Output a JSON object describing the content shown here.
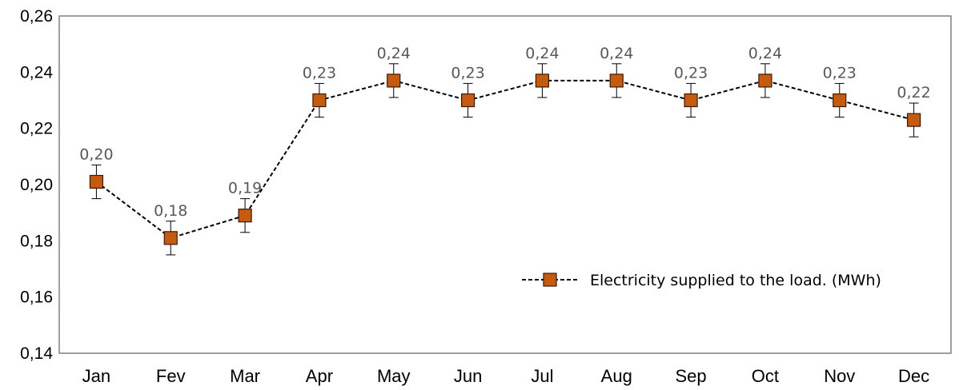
{
  "chart_data": {
    "type": "line",
    "title": "",
    "xlabel": "",
    "ylabel": "",
    "categories": [
      "Jan",
      "Fev",
      "Mar",
      "Apr",
      "May",
      "Jun",
      "Jul",
      "Aug",
      "Sep",
      "Oct",
      "Nov",
      "Dec"
    ],
    "series": [
      {
        "name": "Electricity supplied to the load. (MWh)",
        "values": [
          0.201,
          0.181,
          0.189,
          0.23,
          0.237,
          0.23,
          0.237,
          0.237,
          0.23,
          0.237,
          0.23,
          0.223
        ],
        "data_labels": [
          "0,20",
          "0,18",
          "0,19",
          "0,23",
          "0,24",
          "0,23",
          "0,24",
          "0,24",
          "0,23",
          "0,24",
          "0,23",
          "0,22"
        ],
        "error": 0.006,
        "line_style": "dashed",
        "line_color": "#000000",
        "marker": "square",
        "marker_color": "#C55A11",
        "marker_edge_color": "#3b1a05"
      }
    ],
    "ylim": [
      0.14,
      0.26
    ],
    "y_ticks": [
      "0,14",
      "0,16",
      "0,18",
      "0,20",
      "0,22",
      "0,24",
      "0,26"
    ],
    "y_tick_values": [
      0.14,
      0.16,
      0.18,
      0.2,
      0.22,
      0.24,
      0.26
    ],
    "grid": false,
    "legend_position": "right",
    "plot_border_color": "#808080"
  }
}
